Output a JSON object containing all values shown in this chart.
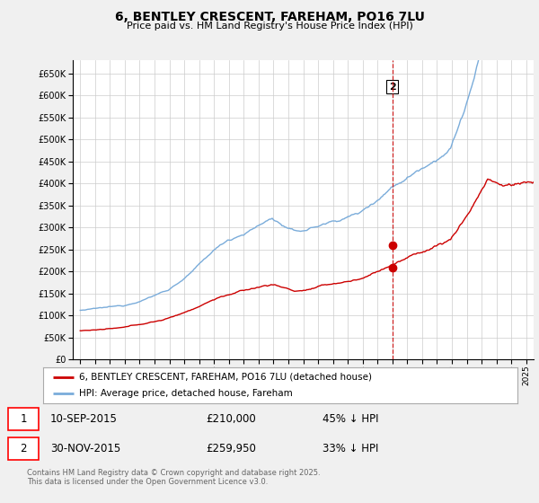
{
  "title": "6, BENTLEY CRESCENT, FAREHAM, PO16 7LU",
  "subtitle": "Price paid vs. HM Land Registry's House Price Index (HPI)",
  "legend_label_red": "6, BENTLEY CRESCENT, FAREHAM, PO16 7LU (detached house)",
  "legend_label_blue": "HPI: Average price, detached house, Fareham",
  "footer": "Contains HM Land Registry data © Crown copyright and database right 2025.\nThis data is licensed under the Open Government Licence v3.0.",
  "sale1_date": "10-SEP-2015",
  "sale1_price": "£210,000",
  "sale1_hpi": "45% ↓ HPI",
  "sale2_date": "30-NOV-2015",
  "sale2_price": "£259,950",
  "sale2_hpi": "33% ↓ HPI",
  "vline_x": 2016.0,
  "marker1_y_red": 210000,
  "marker2_y_red": 259950,
  "marker_x": 2016.0,
  "ylim_min": 0,
  "ylim_max": 680000,
  "xlim_min": 1994.5,
  "xlim_max": 2025.5,
  "red_color": "#cc0000",
  "blue_color": "#7aacda",
  "background_color": "#f0f0f0",
  "plot_bg_color": "#ffffff"
}
